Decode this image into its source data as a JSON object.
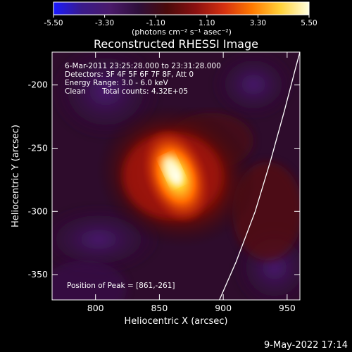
{
  "colorbar": {
    "ticks": [
      "-5.50",
      "-3.30",
      "-1.10",
      "1.10",
      "3.30",
      "5.50"
    ],
    "label": "(photons cm⁻² s⁻¹ asec⁻²)",
    "stops": [
      "#1a1aff",
      "#3a1a8a",
      "#4a1a6a",
      "#2e0f3a",
      "#4a0a0a",
      "#8a1010",
      "#d43010",
      "#ff7a00",
      "#ffd23a",
      "#ffffe0"
    ]
  },
  "image": {
    "title": "Reconstructed RHESSI Image",
    "time_range": "6-Mar-2011 23:25:28.000 to 23:31:28.000",
    "detectors": "Detectors: 3F 4F 5F 6F 7F 8F, Att 0",
    "energy_range": "Energy Range: 3.0 - 6.0 keV",
    "algorithm": "Clean",
    "total_counts": "Total counts: 4.32E+05",
    "peak": "Position of Peak = [861,-261]"
  },
  "footer_date": "9-May-2022 17:14",
  "chart_data": {
    "type": "heatmap",
    "title": "Reconstructed RHESSI Image",
    "xlabel": "Heliocentric X (arcsec)",
    "ylabel": "Heliocentric Y (arcsec)",
    "xlim": [
      766,
      960
    ],
    "ylim": [
      -370,
      -174
    ],
    "xticks": [
      800,
      850,
      900,
      950
    ],
    "yticks": [
      -200,
      -250,
      -300,
      -350
    ],
    "peak": [
      861,
      -261
    ],
    "limb_curve": [
      [
        897,
        -370
      ],
      [
        910,
        -340
      ],
      [
        925,
        -300
      ],
      [
        937,
        -260
      ],
      [
        948,
        -220
      ],
      [
        957,
        -185
      ],
      [
        960,
        -174
      ]
    ]
  }
}
